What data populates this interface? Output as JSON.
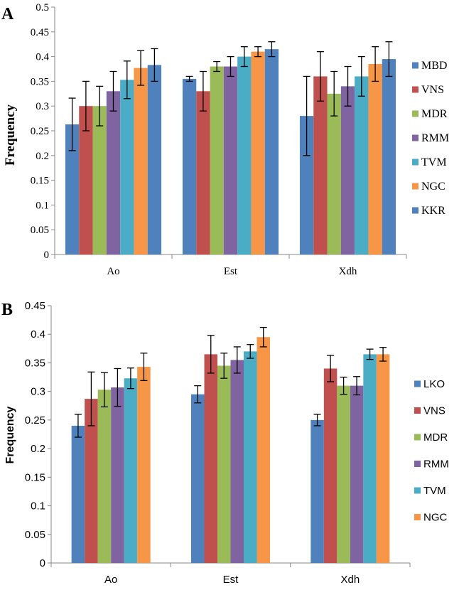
{
  "chart_data": [
    {
      "panel": "A",
      "type": "bar",
      "title": "",
      "xlabel": "",
      "ylabel": "Frequency",
      "ylim": [
        0,
        0.5
      ],
      "yticks": [
        "0",
        "0.05",
        "0.1",
        "0.15",
        "0.2",
        "0.25",
        "0.3",
        "0.35",
        "0.4",
        "0.45",
        "0.5"
      ],
      "grid": false,
      "legend_position": "right",
      "categories": [
        "Ao",
        "Est",
        "Xdh"
      ],
      "series": [
        {
          "name": "MBD",
          "color": "#4f81bd",
          "values": [
            0.263,
            0.355,
            0.28
          ],
          "errors": [
            0.053,
            0.005,
            0.08
          ]
        },
        {
          "name": "VNS",
          "color": "#c0504d",
          "values": [
            0.3,
            0.33,
            0.36
          ],
          "errors": [
            0.05,
            0.04,
            0.05
          ]
        },
        {
          "name": "MDR",
          "color": "#9bbb59",
          "values": [
            0.3,
            0.38,
            0.325
          ],
          "errors": [
            0.04,
            0.01,
            0.045
          ]
        },
        {
          "name": "RMM",
          "color": "#8064a2",
          "values": [
            0.33,
            0.38,
            0.34
          ],
          "errors": [
            0.04,
            0.02,
            0.04
          ]
        },
        {
          "name": "TVM",
          "color": "#4bacc6",
          "values": [
            0.353,
            0.4,
            0.36
          ],
          "errors": [
            0.038,
            0.02,
            0.04
          ]
        },
        {
          "name": "NGC",
          "color": "#f79646",
          "values": [
            0.377,
            0.41,
            0.385
          ],
          "errors": [
            0.035,
            0.01,
            0.035
          ]
        },
        {
          "name": "KKR",
          "color": "#4f81bd",
          "values": [
            0.383,
            0.415,
            0.395
          ],
          "errors": [
            0.033,
            0.015,
            0.035
          ]
        }
      ]
    },
    {
      "panel": "B",
      "type": "bar",
      "title": "",
      "xlabel": "",
      "ylabel": "Frequency",
      "ylim": [
        0,
        0.45
      ],
      "yticks": [
        "0",
        "0.05",
        "0.1",
        "0.15",
        "0.2",
        "0.25",
        "0.3",
        "0.35",
        "0.4",
        "0.45"
      ],
      "grid": false,
      "legend_position": "right",
      "categories": [
        "Ao",
        "Est",
        "Xdh"
      ],
      "series": [
        {
          "name": "LKO",
          "color": "#4f81bd",
          "values": [
            0.24,
            0.295,
            0.25
          ],
          "errors": [
            0.02,
            0.015,
            0.01
          ]
        },
        {
          "name": "VNS",
          "color": "#c0504d",
          "values": [
            0.287,
            0.365,
            0.34
          ],
          "errors": [
            0.047,
            0.033,
            0.023
          ]
        },
        {
          "name": "MDR",
          "color": "#9bbb59",
          "values": [
            0.303,
            0.345,
            0.31
          ],
          "errors": [
            0.03,
            0.022,
            0.015
          ]
        },
        {
          "name": "RMM",
          "color": "#8064a2",
          "values": [
            0.307,
            0.355,
            0.31
          ],
          "errors": [
            0.033,
            0.023,
            0.016
          ]
        },
        {
          "name": "TVM",
          "color": "#4bacc6",
          "values": [
            0.323,
            0.37,
            0.365
          ],
          "errors": [
            0.018,
            0.012,
            0.009
          ]
        },
        {
          "name": "NGC",
          "color": "#f79646",
          "values": [
            0.343,
            0.395,
            0.365
          ],
          "errors": [
            0.024,
            0.017,
            0.012
          ]
        }
      ]
    }
  ]
}
